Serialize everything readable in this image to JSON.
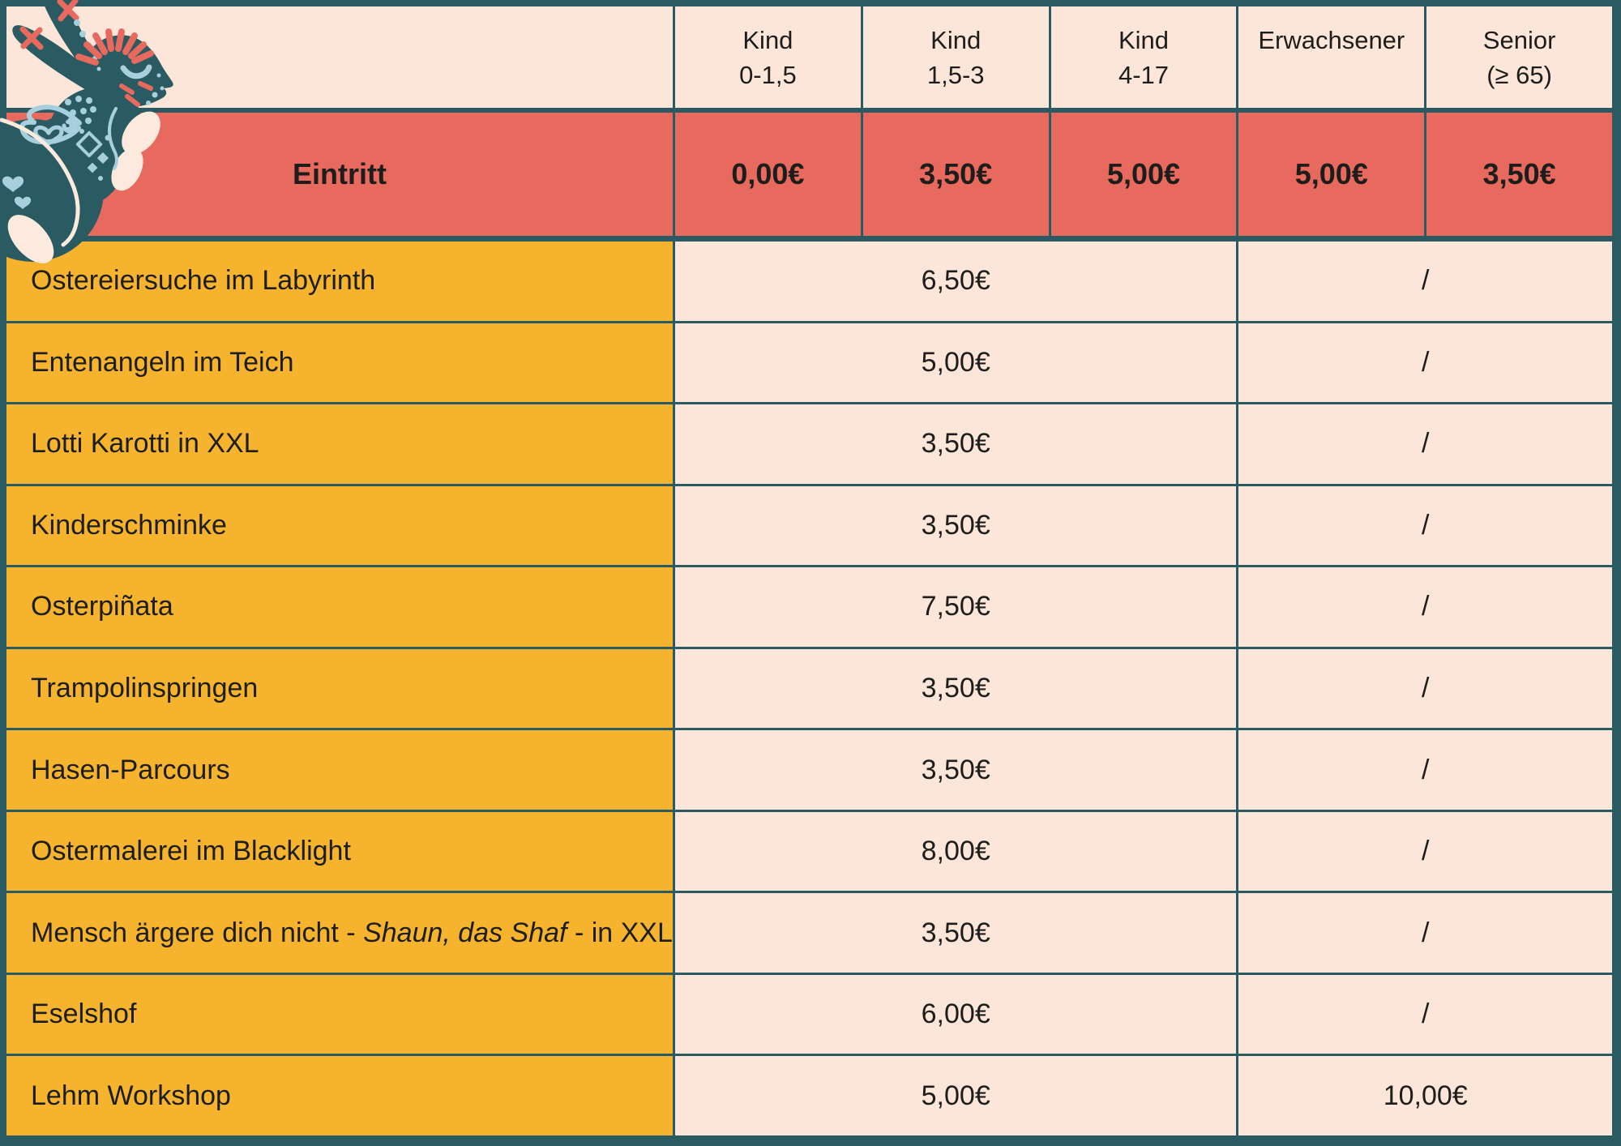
{
  "header": {
    "columns": [
      {
        "line1": "Kind",
        "line2": "0-1,5"
      },
      {
        "line1": "Kind",
        "line2": "1,5-3"
      },
      {
        "line1": "Kind",
        "line2": "4-17"
      },
      {
        "line1": "Erwachsener",
        "line2": ""
      },
      {
        "line1": "Senior",
        "line2": "(≥ 65)"
      }
    ]
  },
  "eintritt": {
    "label": "Eintritt",
    "prices": [
      "0,00€",
      "3,50€",
      "5,00€",
      "5,00€",
      "3,50€"
    ]
  },
  "activities": [
    {
      "label_parts": [
        {
          "text": "Ostereiersuche im Labyrinth",
          "italic": false
        }
      ],
      "kids": "6,50€",
      "adults": "/"
    },
    {
      "label_parts": [
        {
          "text": "Entenangeln im Teich",
          "italic": false
        }
      ],
      "kids": "5,00€",
      "adults": "/"
    },
    {
      "label_parts": [
        {
          "text": "Lotti Karotti in XXL",
          "italic": false
        }
      ],
      "kids": "3,50€",
      "adults": "/"
    },
    {
      "label_parts": [
        {
          "text": "Kinderschminke",
          "italic": false
        }
      ],
      "kids": "3,50€",
      "adults": "/"
    },
    {
      "label_parts": [
        {
          "text": "Osterpiñata",
          "italic": false
        }
      ],
      "kids": "7,50€",
      "adults": "/"
    },
    {
      "label_parts": [
        {
          "text": "Trampolinspringen",
          "italic": false
        }
      ],
      "kids": "3,50€",
      "adults": "/"
    },
    {
      "label_parts": [
        {
          "text": "Hasen-Parcours",
          "italic": false
        }
      ],
      "kids": "3,50€",
      "adults": "/"
    },
    {
      "label_parts": [
        {
          "text": "Ostermalerei im Blacklight",
          "italic": false
        }
      ],
      "kids": "8,00€",
      "adults": "/"
    },
    {
      "label_parts": [
        {
          "text": "Mensch ärgere dich nicht - ",
          "italic": false
        },
        {
          "text": "Shaun, das Shaf",
          "italic": true
        },
        {
          "text": " - in XXL",
          "italic": false
        }
      ],
      "kids": "3,50€",
      "adults": "/"
    },
    {
      "label_parts": [
        {
          "text": "Eselshof",
          "italic": false
        }
      ],
      "kids": "6,00€",
      "adults": "/"
    },
    {
      "label_parts": [
        {
          "text": "Lehm Workshop",
          "italic": false
        }
      ],
      "kids": "5,00€",
      "adults": "10,00€"
    }
  ],
  "decorations": {
    "rabbit_icon": "folk-art-easter-hare"
  },
  "colors": {
    "teal": "#2a5a62",
    "cream": "#fce6d9",
    "coral": "#e8695d",
    "yellow": "#f6b42e",
    "text": "#1d1d1b",
    "light_blue": "#a8cfdd",
    "paw_cream": "#fdeadf"
  }
}
